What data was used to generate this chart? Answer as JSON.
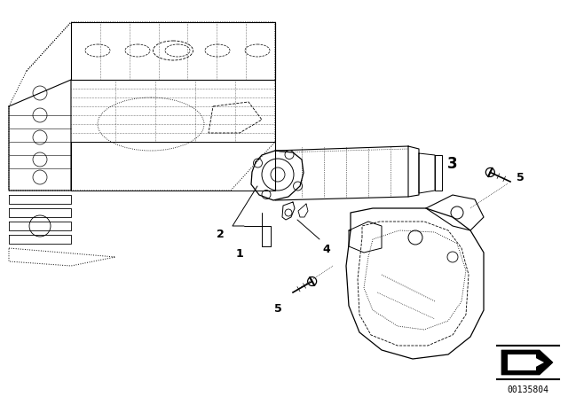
{
  "bg_color": "#ffffff",
  "line_color": "#000000",
  "fig_width": 6.4,
  "fig_height": 4.48,
  "dpi": 100,
  "watermark_text": "00135804"
}
